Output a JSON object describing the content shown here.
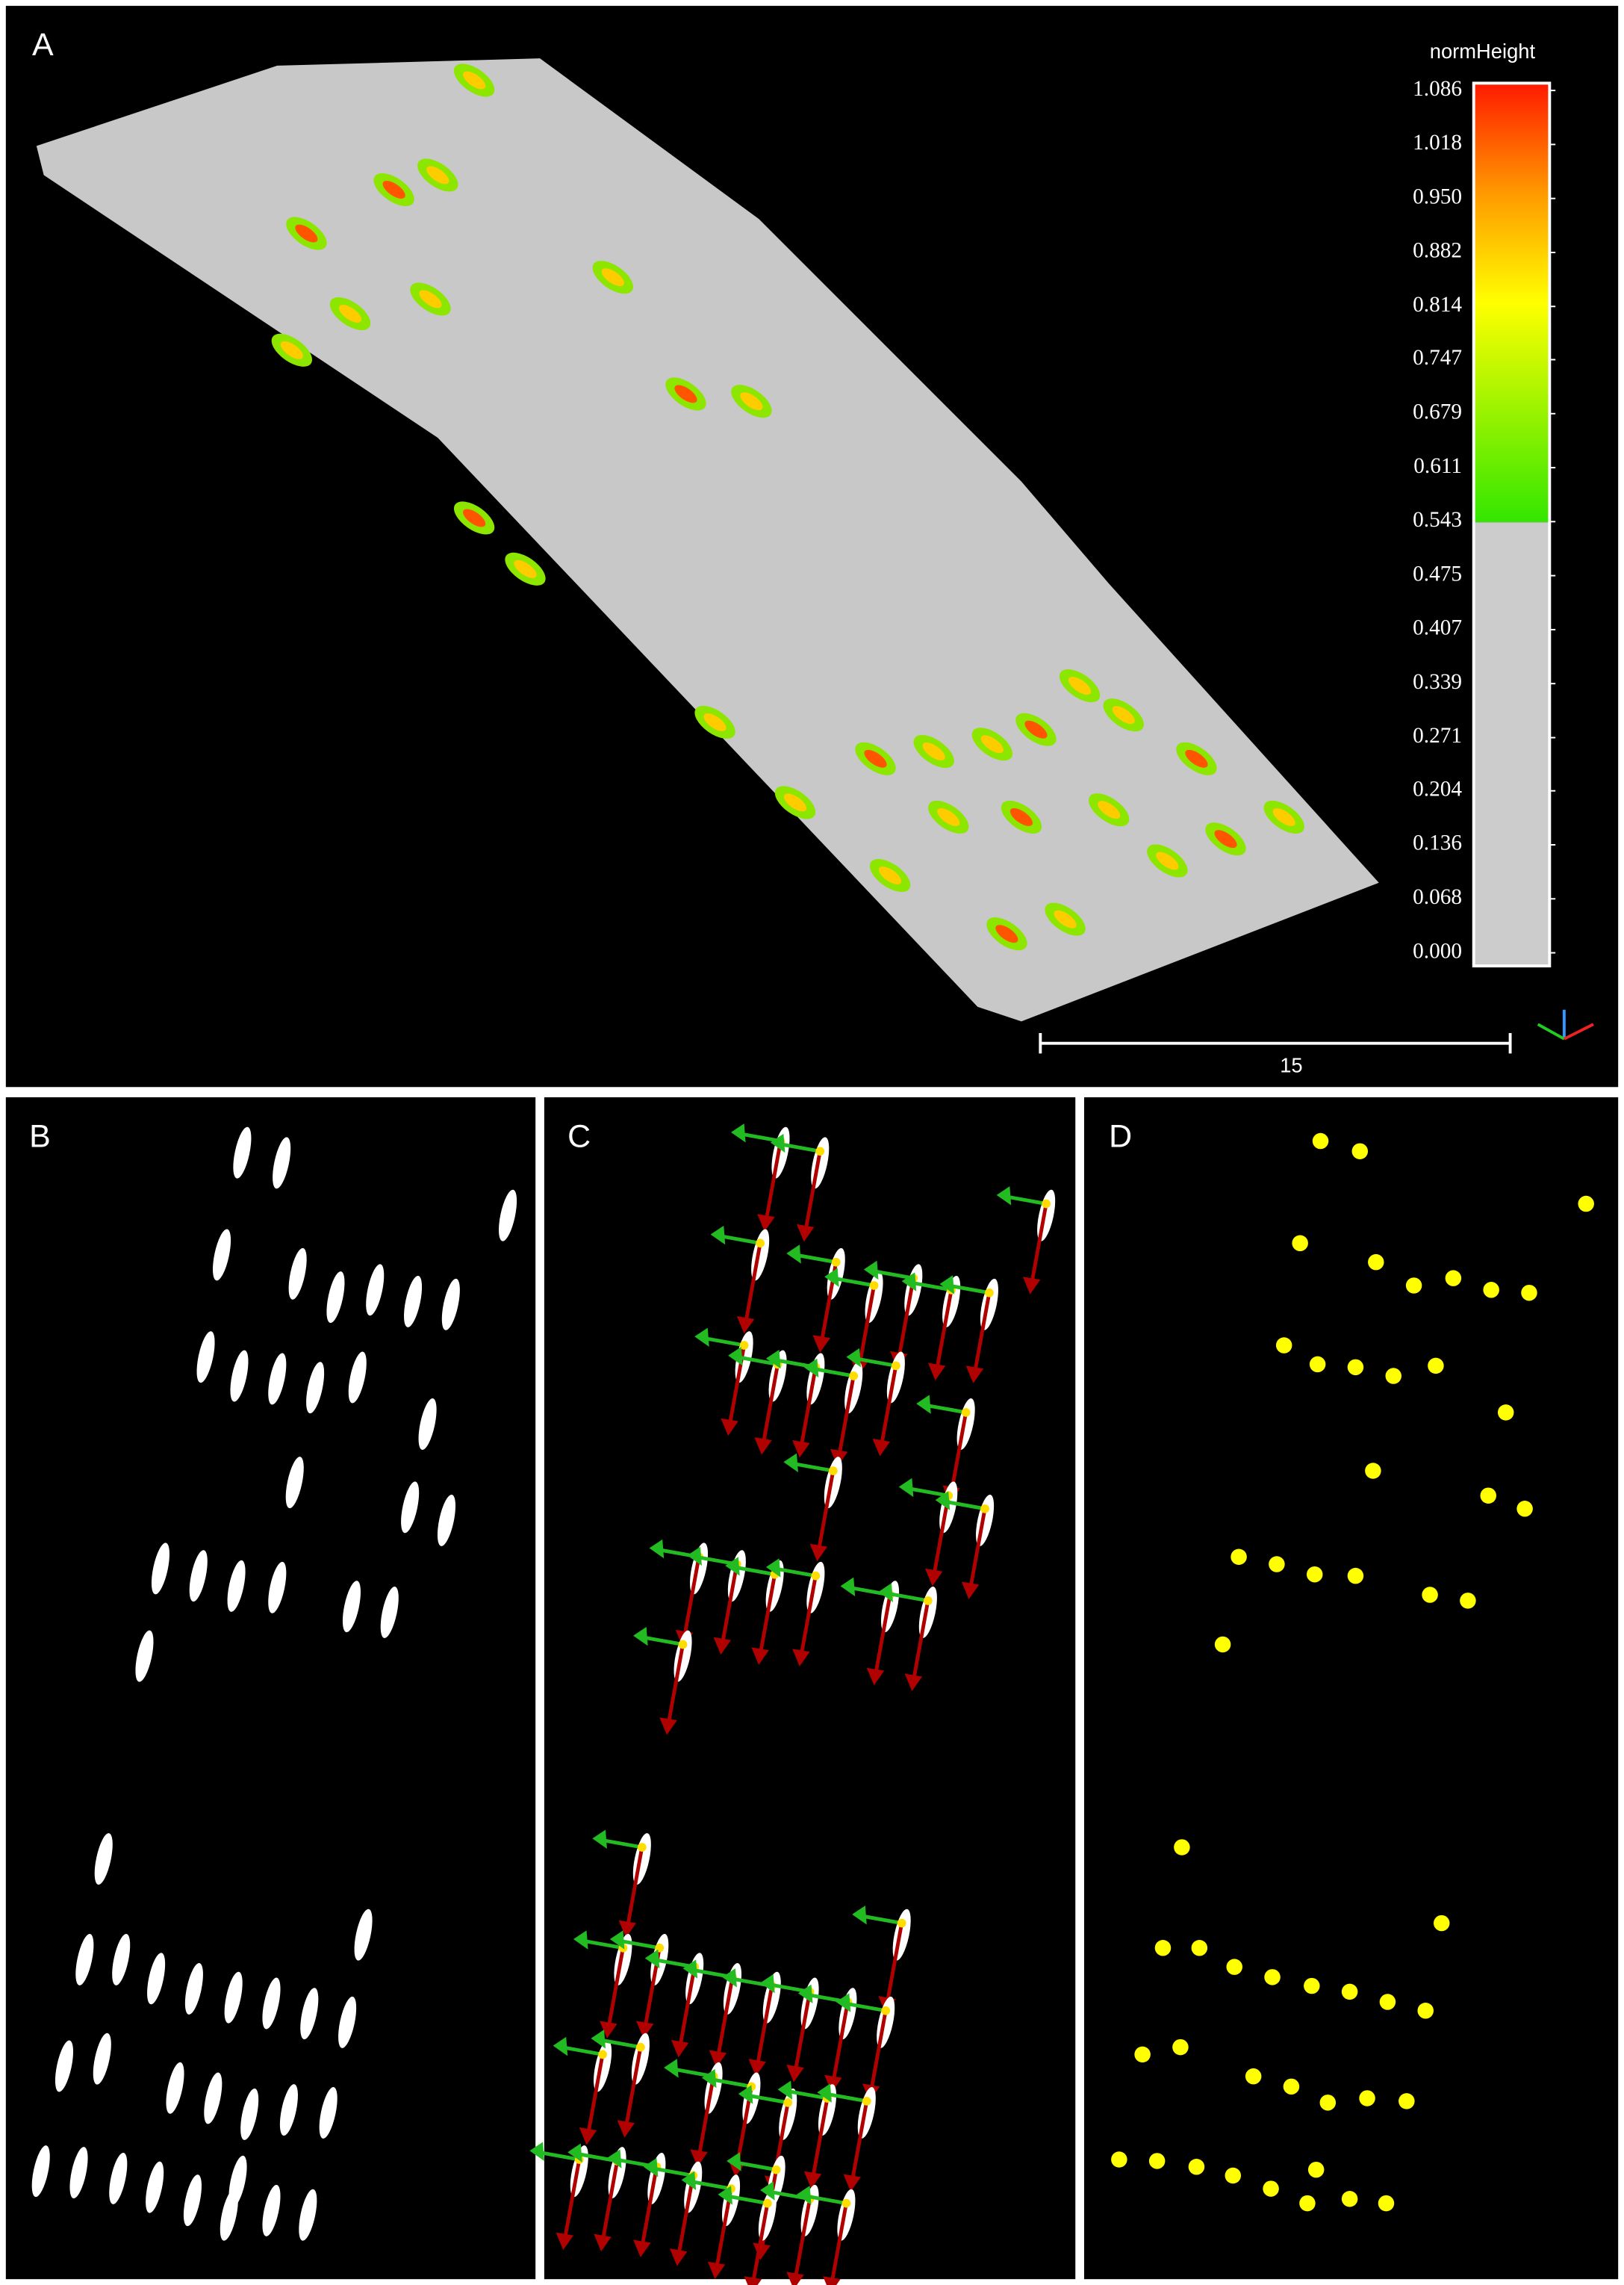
{
  "panels": {
    "a": {
      "label": "A",
      "colorbar": {
        "title": "normHeight",
        "ticks": [
          1.086,
          1.018,
          {
            "value": 0.95,
            "label": "0.950"
          },
          0.882,
          0.814,
          0.747,
          0.679,
          0.611,
          0.543,
          0.475,
          0.407,
          0.339,
          0.271,
          0.204,
          0.136,
          0.068,
          {
            "value": 0,
            "label": "0.000"
          }
        ]
      },
      "scale_bar": 15
    },
    "b": {
      "label": "B"
    },
    "c": {
      "label": "C"
    },
    "d": {
      "label": "D"
    }
  }
}
